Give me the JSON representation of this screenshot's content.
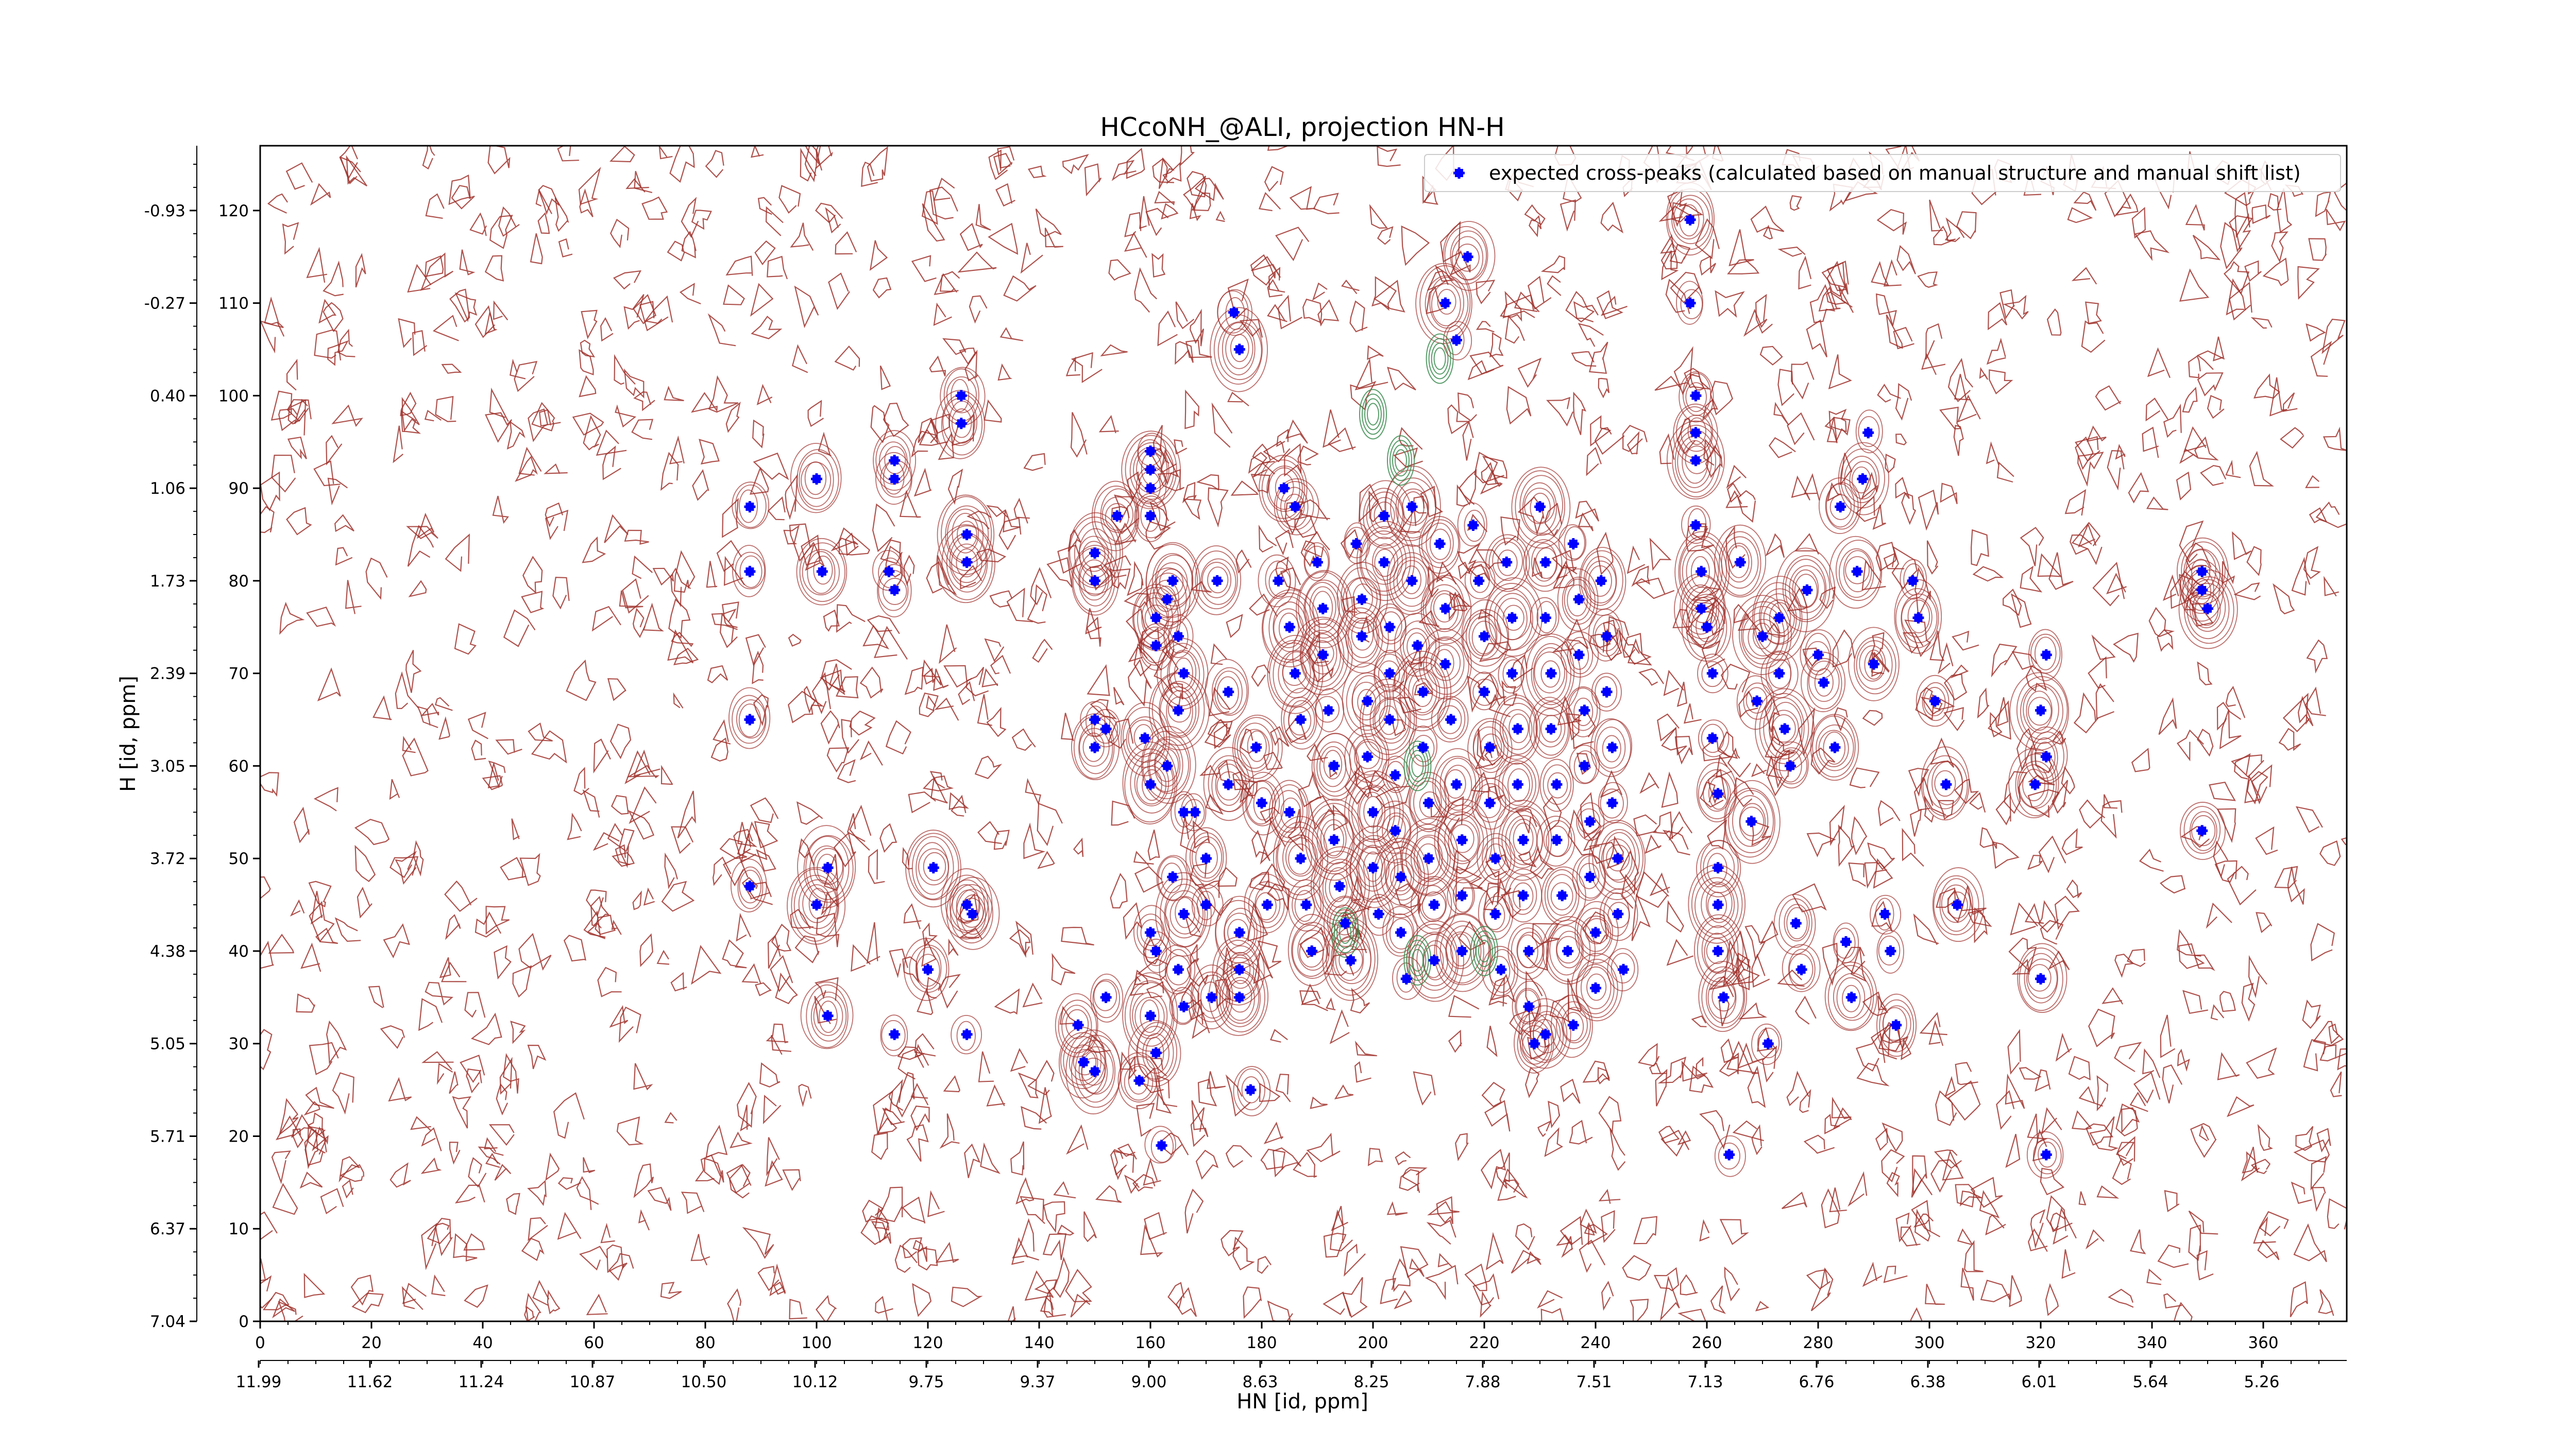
{
  "chart_data": {
    "type": "scatter",
    "title": "HCcoNH_@ALI, projection HN-H",
    "xlabel": "HN [id, ppm]",
    "ylabel": "H [id, ppm]",
    "xlim": [
      0,
      375
    ],
    "ylim": [
      0,
      127
    ],
    "grid": false,
    "legend_position": "top-right",
    "x_ticks": [
      "0",
      "20",
      "40",
      "60",
      "80",
      "100",
      "120",
      "140",
      "160",
      "180",
      "200",
      "220",
      "240",
      "260",
      "280",
      "300",
      "320",
      "340",
      "360"
    ],
    "x_secondary_ticks": [
      "11.99",
      "11.62",
      "11.24",
      "10.87",
      "10.50",
      "10.12",
      "9.75",
      "9.37",
      "9.00",
      "8.63",
      "8.25",
      "7.88",
      "7.51",
      "7.13",
      "6.76",
      "6.38",
      "6.01",
      "5.64",
      "5.26"
    ],
    "y_ticks": [
      "0",
      "10",
      "20",
      "30",
      "40",
      "50",
      "60",
      "70",
      "80",
      "90",
      "100",
      "110",
      "120"
    ],
    "y_secondary_ticks": [
      "7.04",
      "6.37",
      "5.71",
      "5.05",
      "4.38",
      "3.72",
      "3.05",
      "2.39",
      "1.73",
      "1.06",
      "0.40",
      "-0.27",
      "-0.93"
    ],
    "colors": {
      "peaks": "#0000ff",
      "contour_positive": "#a0322d",
      "contour_negative": "#3c8c50"
    },
    "series": [
      {
        "name": "expected cross-peaks (calculated based on manual structure and manual shift list)",
        "points": [
          [
            88,
            88
          ],
          [
            88,
            81
          ],
          [
            88,
            65
          ],
          [
            88,
            47
          ],
          [
            100,
            91
          ],
          [
            101,
            81
          ],
          [
            102,
            49
          ],
          [
            100,
            45
          ],
          [
            102,
            33
          ],
          [
            114,
            93
          ],
          [
            114,
            91
          ],
          [
            113,
            81
          ],
          [
            114,
            79
          ],
          [
            114,
            31
          ],
          [
            121,
            49
          ],
          [
            120,
            38
          ],
          [
            126,
            100
          ],
          [
            126,
            97
          ],
          [
            127,
            85
          ],
          [
            127,
            82
          ],
          [
            127,
            45
          ],
          [
            128,
            44
          ],
          [
            127,
            31
          ],
          [
            147,
            32
          ],
          [
            148,
            28
          ],
          [
            150,
            65
          ],
          [
            150,
            62
          ],
          [
            152,
            64
          ],
          [
            150,
            27
          ],
          [
            152,
            35
          ],
          [
            154,
            87
          ],
          [
            150,
            83
          ],
          [
            150,
            80
          ],
          [
            158,
            26
          ],
          [
            160,
            94
          ],
          [
            160,
            92
          ],
          [
            160,
            87
          ],
          [
            160,
            90
          ],
          [
            161,
            76
          ],
          [
            161,
            73
          ],
          [
            159,
            63
          ],
          [
            160,
            58
          ],
          [
            160,
            42
          ],
          [
            161,
            40
          ],
          [
            160,
            33
          ],
          [
            161,
            29
          ],
          [
            162,
            19
          ],
          [
            163,
            60
          ],
          [
            163,
            78
          ],
          [
            164,
            80
          ],
          [
            165,
            74
          ],
          [
            166,
            70
          ],
          [
            165,
            66
          ],
          [
            164,
            48
          ],
          [
            166,
            44
          ],
          [
            165,
            38
          ],
          [
            166,
            34
          ],
          [
            166,
            55
          ],
          [
            168,
            55
          ],
          [
            170,
            50
          ],
          [
            170,
            45
          ],
          [
            171,
            35
          ],
          [
            172,
            80
          ],
          [
            174,
            68
          ],
          [
            175,
            109
          ],
          [
            176,
            105
          ],
          [
            174,
            58
          ],
          [
            176,
            42
          ],
          [
            176,
            38
          ],
          [
            176,
            35
          ],
          [
            178,
            25
          ],
          [
            179,
            62
          ],
          [
            180,
            56
          ],
          [
            181,
            45
          ],
          [
            183,
            80
          ],
          [
            184,
            90
          ],
          [
            186,
            88
          ],
          [
            185,
            75
          ],
          [
            186,
            70
          ],
          [
            187,
            65
          ],
          [
            185,
            55
          ],
          [
            187,
            50
          ],
          [
            188,
            45
          ],
          [
            189,
            40
          ],
          [
            190,
            82
          ],
          [
            191,
            77
          ],
          [
            191,
            72
          ],
          [
            192,
            66
          ],
          [
            193,
            60
          ],
          [
            193,
            52
          ],
          [
            194,
            47
          ],
          [
            195,
            43
          ],
          [
            196,
            39
          ],
          [
            197,
            84
          ],
          [
            198,
            78
          ],
          [
            198,
            74
          ],
          [
            199,
            67
          ],
          [
            199,
            61
          ],
          [
            200,
            55
          ],
          [
            200,
            49
          ],
          [
            201,
            44
          ],
          [
            202,
            87
          ],
          [
            202,
            82
          ],
          [
            203,
            75
          ],
          [
            203,
            70
          ],
          [
            203,
            65
          ],
          [
            204,
            59
          ],
          [
            204,
            53
          ],
          [
            205,
            48
          ],
          [
            205,
            42
          ],
          [
            206,
            37
          ],
          [
            207,
            88
          ],
          [
            207,
            80
          ],
          [
            208,
            73
          ],
          [
            209,
            68
          ],
          [
            209,
            62
          ],
          [
            210,
            56
          ],
          [
            210,
            50
          ],
          [
            211,
            45
          ],
          [
            211,
            39
          ],
          [
            212,
            84
          ],
          [
            213,
            77
          ],
          [
            213,
            71
          ],
          [
            214,
            65
          ],
          [
            215,
            58
          ],
          [
            216,
            52
          ],
          [
            216,
            46
          ],
          [
            216,
            40
          ],
          [
            217,
            115
          ],
          [
            213,
            110
          ],
          [
            215,
            106
          ],
          [
            218,
            86
          ],
          [
            219,
            80
          ],
          [
            220,
            74
          ],
          [
            220,
            68
          ],
          [
            221,
            62
          ],
          [
            221,
            56
          ],
          [
            222,
            50
          ],
          [
            222,
            44
          ],
          [
            223,
            38
          ],
          [
            224,
            82
          ],
          [
            225,
            76
          ],
          [
            225,
            70
          ],
          [
            226,
            64
          ],
          [
            226,
            58
          ],
          [
            227,
            52
          ],
          [
            227,
            46
          ],
          [
            228,
            40
          ],
          [
            228,
            34
          ],
          [
            230,
            88
          ],
          [
            231,
            82
          ],
          [
            231,
            76
          ],
          [
            232,
            70
          ],
          [
            232,
            64
          ],
          [
            233,
            58
          ],
          [
            233,
            52
          ],
          [
            234,
            46
          ],
          [
            235,
            40
          ],
          [
            236,
            84
          ],
          [
            237,
            78
          ],
          [
            237,
            72
          ],
          [
            238,
            66
          ],
          [
            238,
            60
          ],
          [
            239,
            54
          ],
          [
            239,
            48
          ],
          [
            240,
            42
          ],
          [
            240,
            36
          ],
          [
            241,
            80
          ],
          [
            242,
            74
          ],
          [
            242,
            68
          ],
          [
            243,
            62
          ],
          [
            243,
            56
          ],
          [
            244,
            50
          ],
          [
            244,
            44
          ],
          [
            245,
            38
          ],
          [
            231,
            31
          ],
          [
            229,
            30
          ],
          [
            236,
            32
          ],
          [
            257,
            119
          ],
          [
            257,
            110
          ],
          [
            258,
            100
          ],
          [
            258,
            96
          ],
          [
            258,
            93
          ],
          [
            258,
            86
          ],
          [
            259,
            81
          ],
          [
            259,
            77
          ],
          [
            260,
            75
          ],
          [
            261,
            70
          ],
          [
            261,
            63
          ],
          [
            262,
            57
          ],
          [
            262,
            49
          ],
          [
            262,
            45
          ],
          [
            262,
            40
          ],
          [
            263,
            35
          ],
          [
            264,
            18
          ],
          [
            266,
            82
          ],
          [
            269,
            67
          ],
          [
            270,
            74
          ],
          [
            268,
            54
          ],
          [
            271,
            30
          ],
          [
            273,
            76
          ],
          [
            273,
            70
          ],
          [
            274,
            64
          ],
          [
            275,
            60
          ],
          [
            276,
            43
          ],
          [
            277,
            38
          ],
          [
            278,
            79
          ],
          [
            280,
            72
          ],
          [
            281,
            69
          ],
          [
            283,
            62
          ],
          [
            285,
            41
          ],
          [
            286,
            35
          ],
          [
            284,
            88
          ],
          [
            287,
            81
          ],
          [
            288,
            91
          ],
          [
            289,
            96
          ],
          [
            290,
            71
          ],
          [
            292,
            44
          ],
          [
            293,
            40
          ],
          [
            294,
            32
          ],
          [
            297,
            80
          ],
          [
            298,
            76
          ],
          [
            301,
            67
          ],
          [
            303,
            58
          ],
          [
            305,
            45
          ],
          [
            321,
            72
          ],
          [
            320,
            66
          ],
          [
            321,
            61
          ],
          [
            319,
            58
          ],
          [
            320,
            37
          ],
          [
            321,
            18
          ],
          [
            349,
            53
          ],
          [
            349,
            79
          ],
          [
            349,
            81
          ],
          [
            350,
            77
          ]
        ]
      }
    ]
  }
}
